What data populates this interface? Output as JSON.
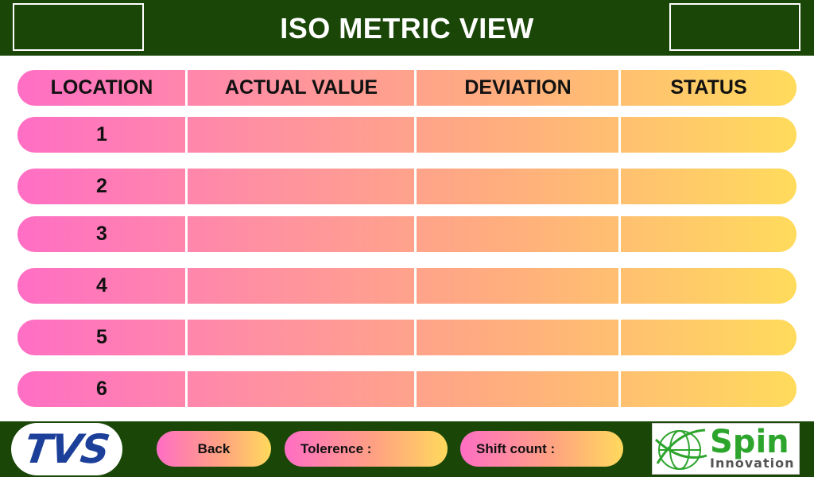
{
  "header": {
    "title": "ISO METRIC VIEW"
  },
  "table": {
    "columns": [
      "LOCATION",
      "ACTUAL VALUE",
      "DEVIATION",
      "STATUS"
    ],
    "rows": [
      {
        "location": "1",
        "actual_value": "",
        "deviation": "",
        "status": ""
      },
      {
        "location": "2",
        "actual_value": "",
        "deviation": "",
        "status": ""
      },
      {
        "location": "3",
        "actual_value": "",
        "deviation": "",
        "status": ""
      },
      {
        "location": "4",
        "actual_value": "",
        "deviation": "",
        "status": ""
      },
      {
        "location": "5",
        "actual_value": "",
        "deviation": "",
        "status": ""
      },
      {
        "location": "6",
        "actual_value": "",
        "deviation": "",
        "status": ""
      }
    ]
  },
  "footer": {
    "logo_left": "TVS",
    "back_label": "Back",
    "tolerance_label": "Tolerence :",
    "shift_count_label": "Shift count :",
    "logo_right": {
      "line1": "Spin",
      "line2": "Innovation"
    }
  },
  "colors": {
    "bar_green": "#1a4708",
    "gradient_pink": "#ff6ec4",
    "gradient_peach": "#ffad7e",
    "gradient_yellow": "#ffdb5c",
    "tvs_blue": "#1c3f9a",
    "spin_green": "#2da52d"
  }
}
